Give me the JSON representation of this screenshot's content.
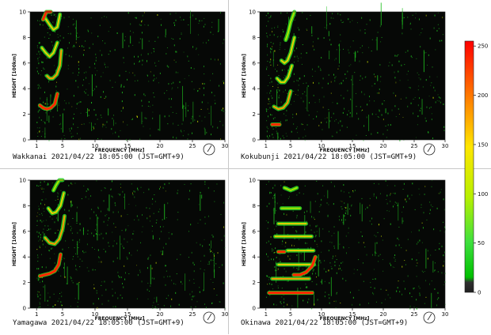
{
  "colors": {
    "background": "#060806",
    "noise": "#1fbf1f",
    "trace_low": "#29d629",
    "trace_mid": "#e8d000",
    "trace_high": "#ff2a00"
  },
  "colorbar": {
    "ticks": [
      "250",
      "200",
      "150",
      "100",
      "50",
      "0"
    ],
    "tick_values": [
      250,
      200,
      150,
      100,
      50,
      0
    ],
    "range": [
      0,
      255
    ]
  },
  "chart_data": [
    {
      "type": "heatmap",
      "station": "Wakkanai",
      "caption": "Wakkanai 2021/04/22 18:05:00 (JST=GMT+9)",
      "xlabel": "FREQUENCY [MHz]",
      "ylabel": "HEIGHT [100km]",
      "xlim": [
        0,
        30
      ],
      "ylim": [
        0,
        10
      ],
      "xticks": [
        1,
        5,
        10,
        15,
        20,
        25,
        30
      ],
      "xtick_labels": [
        "1",
        "5",
        "10",
        "15",
        "20",
        "25",
        "30"
      ],
      "yticks": [
        0,
        2,
        4,
        6,
        8,
        10
      ],
      "ytick_labels": [
        "0",
        "2",
        "4",
        "6",
        "8",
        "10"
      ],
      "traces": [
        {
          "x": [
            1.5,
            2.0,
            2.6,
            3.2,
            3.8,
            4.2
          ],
          "y": [
            2.7,
            2.5,
            2.4,
            2.5,
            2.8,
            3.6
          ],
          "intensity": 240
        },
        {
          "x": [
            2.6,
            3.0,
            3.5,
            4.1,
            4.6,
            4.8
          ],
          "y": [
            5.0,
            4.8,
            4.8,
            5.1,
            5.8,
            7.0
          ],
          "intensity": 180
        },
        {
          "x": [
            1.8,
            2.4,
            3.0,
            3.6,
            4.2
          ],
          "y": [
            7.2,
            6.8,
            6.5,
            6.8,
            7.6
          ],
          "intensity": 130
        },
        {
          "x": [
            2.2,
            3.0,
            3.6,
            4.2,
            4.6
          ],
          "y": [
            9.6,
            9.0,
            8.6,
            8.8,
            9.8
          ],
          "intensity": 110
        },
        {
          "x": [
            2.0,
            2.5,
            3.2
          ],
          "y": [
            9.4,
            10.0,
            10.0
          ],
          "intensity": 235
        }
      ]
    },
    {
      "type": "heatmap",
      "station": "Kokubunji",
      "caption": "Kokubunji 2021/04/22 18:05:00 (JST=GMT+9)",
      "xlabel": "FREQUENCY [MHz]",
      "ylabel": "HEIGHT [100km]",
      "xlim": [
        0,
        30
      ],
      "ylim": [
        0,
        10
      ],
      "xticks": [
        1,
        5,
        10,
        15,
        20,
        25,
        30
      ],
      "xtick_labels": [
        "1",
        "5",
        "10",
        "15",
        "20",
        "25",
        "30"
      ],
      "yticks": [
        0,
        2,
        4,
        6,
        8,
        10
      ],
      "ytick_labels": [
        "0",
        "2",
        "4",
        "6",
        "8",
        "10"
      ],
      "traces": [
        {
          "x": [
            2.0,
            2.4,
            2.8,
            3.2
          ],
          "y": [
            1.2,
            1.2,
            1.2,
            1.2
          ],
          "intensity": 240
        },
        {
          "x": [
            2.3,
            3.0,
            3.8,
            4.5,
            5.0
          ],
          "y": [
            2.6,
            2.4,
            2.5,
            2.9,
            3.8
          ],
          "intensity": 150
        },
        {
          "x": [
            2.8,
            3.4,
            4.0,
            4.6,
            5.2
          ],
          "y": [
            4.8,
            4.5,
            4.5,
            4.9,
            5.8
          ],
          "intensity": 120
        },
        {
          "x": [
            3.5,
            4.0,
            4.5,
            5.0,
            5.6
          ],
          "y": [
            6.2,
            6.0,
            6.2,
            6.8,
            8.0
          ],
          "intensity": 110
        },
        {
          "x": [
            4.2,
            4.6,
            5.0,
            5.6
          ],
          "y": [
            7.8,
            8.4,
            9.2,
            10.0
          ],
          "intensity": 100
        }
      ]
    },
    {
      "type": "heatmap",
      "station": "Yamagawa",
      "caption": "Yamagawa 2021/04/22 18:05:00 (JST=GMT+9)",
      "xlabel": "FREQUENCY [MHz]",
      "ylabel": "HEIGHT [100km]",
      "xlim": [
        0,
        30
      ],
      "ylim": [
        0,
        10
      ],
      "xticks": [
        1,
        5,
        10,
        15,
        20,
        25,
        30
      ],
      "xtick_labels": [
        "1",
        "5",
        "10",
        "15",
        "20",
        "25",
        "30"
      ],
      "yticks": [
        0,
        2,
        4,
        6,
        8,
        10
      ],
      "ytick_labels": [
        "0",
        "2",
        "4",
        "6",
        "8",
        "10"
      ],
      "traces": [
        {
          "x": [
            1.5,
            2.2,
            3.0,
            3.8,
            4.4,
            4.7
          ],
          "y": [
            2.5,
            2.6,
            2.7,
            2.9,
            3.4,
            4.2
          ],
          "intensity": 245
        },
        {
          "x": [
            2.3,
            3.0,
            3.8,
            4.5,
            5.0,
            5.3
          ],
          "y": [
            5.5,
            5.1,
            5.0,
            5.4,
            6.2,
            7.2
          ],
          "intensity": 170
        },
        {
          "x": [
            2.8,
            3.4,
            4.0,
            4.7,
            5.2
          ],
          "y": [
            7.8,
            7.4,
            7.5,
            8.0,
            9.0
          ],
          "intensity": 110
        },
        {
          "x": [
            3.6,
            4.0,
            4.5,
            5.0
          ],
          "y": [
            9.2,
            9.6,
            10.0,
            10.0
          ],
          "intensity": 100
        }
      ]
    },
    {
      "type": "heatmap",
      "station": "Okinawa",
      "caption": "Okinawa 2021/04/22 18:05:00 (JST=GMT+9)",
      "xlabel": "FREQUENCY [MHz]",
      "ylabel": "HEIGHT [100km]",
      "xlim": [
        0,
        30
      ],
      "ylim": [
        0,
        10
      ],
      "xticks": [
        1,
        5,
        10,
        15,
        20,
        25,
        30
      ],
      "xtick_labels": [
        "1",
        "5",
        "10",
        "15",
        "20",
        "25",
        "30"
      ],
      "yticks": [
        0,
        2,
        4,
        6,
        8,
        10
      ],
      "ytick_labels": [
        "0",
        "2",
        "4",
        "6",
        "8",
        "10"
      ],
      "traces": [
        {
          "x": [
            1.5,
            3.0,
            5.0,
            7.0,
            8.5
          ],
          "y": [
            1.2,
            1.2,
            1.2,
            1.2,
            1.2
          ],
          "intensity": 240
        },
        {
          "x": [
            2.0,
            3.5,
            5.0,
            6.5,
            8.0
          ],
          "y": [
            2.3,
            2.3,
            2.3,
            2.3,
            2.3
          ],
          "intensity": 170
        },
        {
          "x": [
            3.0,
            4.5,
            6.0,
            7.5,
            8.8
          ],
          "y": [
            3.4,
            3.4,
            3.4,
            3.4,
            3.4
          ],
          "intensity": 130
        },
        {
          "x": [
            3.0,
            3.5,
            4.0
          ],
          "y": [
            4.4,
            4.4,
            4.4
          ],
          "intensity": 235
        },
        {
          "x": [
            4.5,
            6.0,
            7.5,
            8.7
          ],
          "y": [
            4.5,
            4.5,
            4.5,
            4.5
          ],
          "intensity": 140
        },
        {
          "x": [
            2.5,
            4.0,
            5.5,
            7.0,
            8.4
          ],
          "y": [
            5.6,
            5.6,
            5.6,
            5.6,
            5.6
          ],
          "intensity": 120
        },
        {
          "x": [
            3.0,
            4.5,
            6.0,
            7.5
          ],
          "y": [
            6.6,
            6.6,
            6.6,
            6.6
          ],
          "intensity": 110
        },
        {
          "x": [
            3.5,
            5.0,
            6.5
          ],
          "y": [
            7.8,
            7.8,
            7.8
          ],
          "intensity": 100
        },
        {
          "x": [
            4.0,
            5.0,
            6.0
          ],
          "y": [
            9.4,
            9.2,
            9.4
          ],
          "intensity": 100
        },
        {
          "x": [
            5.5,
            6.5,
            7.5,
            8.5,
            9.0
          ],
          "y": [
            2.6,
            2.6,
            2.8,
            3.3,
            4.0
          ],
          "intensity": 230
        }
      ]
    }
  ]
}
